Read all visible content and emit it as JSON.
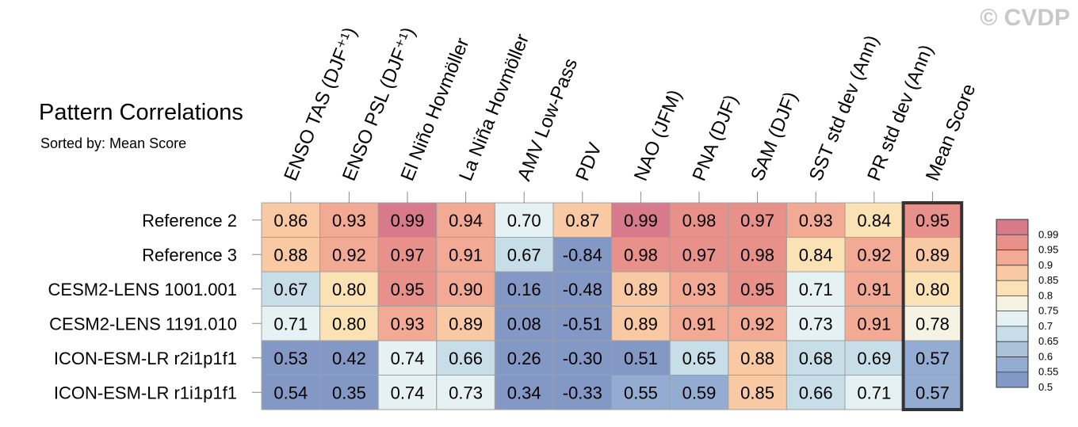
{
  "title": "Pattern Correlations",
  "subtitle": "Sorted by: Mean Score",
  "watermark": "© CVDP",
  "chart_data": {
    "type": "heatmap",
    "columns": [
      "ENSO TAS (DJF⁺¹)",
      "ENSO PSL (DJF⁺¹)",
      "El Niño Hovmöller",
      "La Niña Hovmöller",
      "AMV Low-Pass",
      "PDV",
      "NAO (JFM)",
      "PNA (DJF)",
      "SAM (DJF)",
      "SST std dev (Ann)",
      "PR std dev (Ann)",
      "Mean Score"
    ],
    "rows": [
      "Reference 2",
      "Reference 3",
      "CESM2-LENS 1001.001",
      "CESM2-LENS 1191.010",
      "ICON-ESM-LR r2i1p1f1",
      "ICON-ESM-LR r1i1p1f1"
    ],
    "values": [
      [
        0.86,
        0.93,
        0.99,
        0.94,
        0.7,
        0.87,
        0.99,
        0.98,
        0.97,
        0.93,
        0.84,
        0.95
      ],
      [
        0.88,
        0.92,
        0.97,
        0.91,
        0.67,
        -0.84,
        0.98,
        0.97,
        0.98,
        0.84,
        0.92,
        0.89
      ],
      [
        0.67,
        0.8,
        0.95,
        0.9,
        0.16,
        -0.48,
        0.89,
        0.93,
        0.95,
        0.71,
        0.91,
        0.8
      ],
      [
        0.71,
        0.8,
        0.93,
        0.89,
        0.08,
        -0.51,
        0.89,
        0.91,
        0.92,
        0.73,
        0.91,
        0.78
      ],
      [
        0.53,
        0.42,
        0.74,
        0.66,
        0.26,
        -0.3,
        0.51,
        0.65,
        0.88,
        0.68,
        0.69,
        0.57
      ],
      [
        0.54,
        0.35,
        0.74,
        0.73,
        0.34,
        -0.33,
        0.55,
        0.59,
        0.85,
        0.66,
        0.71,
        0.57
      ]
    ],
    "highlighted_column": "Mean Score",
    "colorbar": {
      "labels": [
        "0.99",
        "0.95",
        "0.9",
        "0.85",
        "0.8",
        "0.75",
        "0.7",
        "0.65",
        "0.6",
        "0.55",
        "0.5"
      ],
      "colors": [
        "#d67a8c",
        "#e8918a",
        "#f3aa94",
        "#f8c9a3",
        "#fbe2b5",
        "#f5f4e4",
        "#e5f1f2",
        "#c7dee8",
        "#aac1d8",
        "#95acd2",
        "#8498c6"
      ]
    }
  }
}
